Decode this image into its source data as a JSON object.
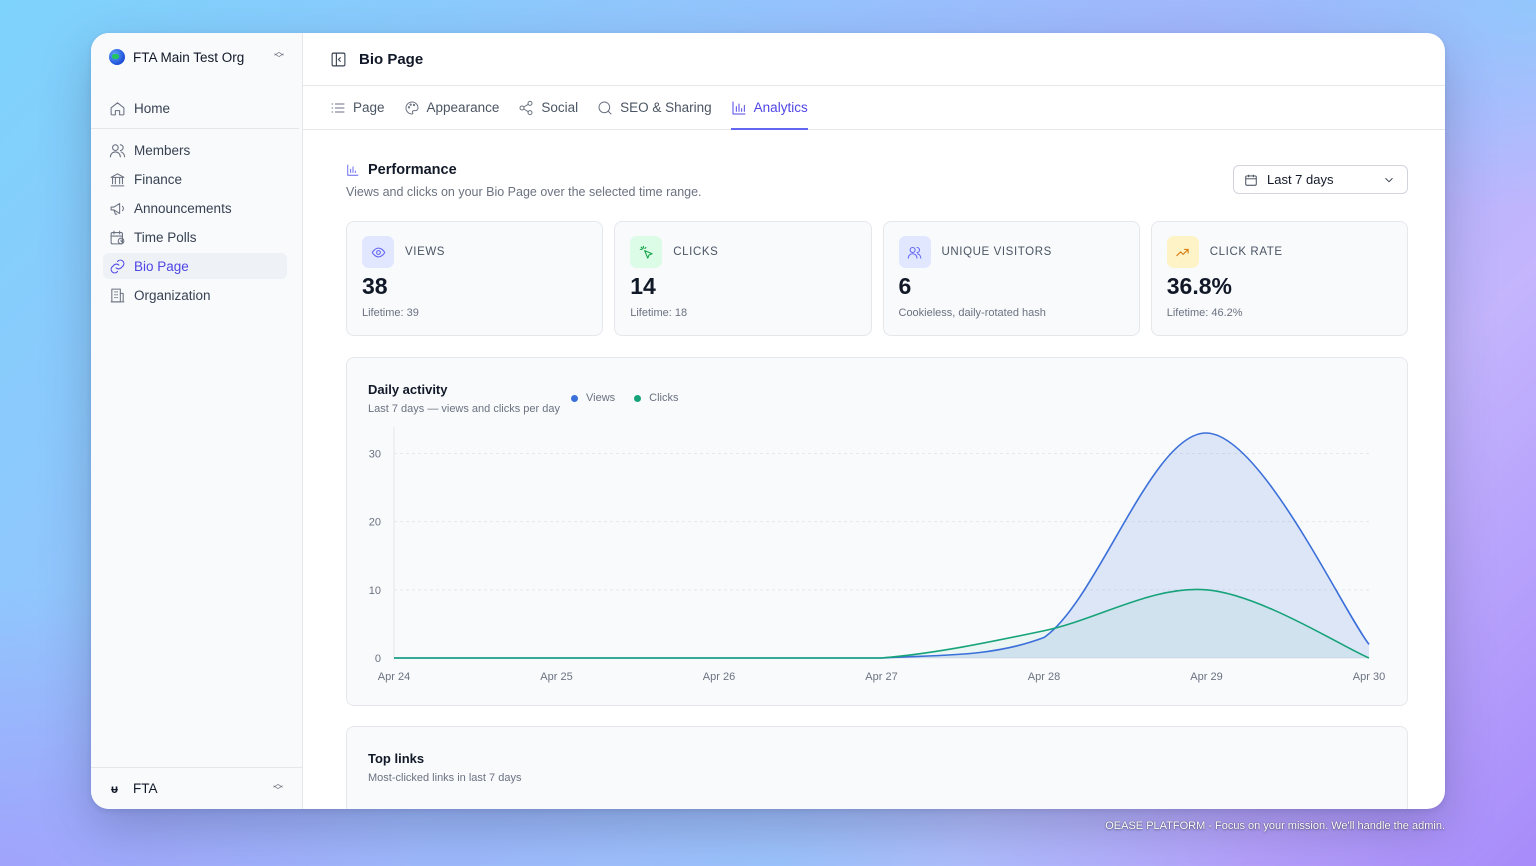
{
  "colors": {
    "accent": "#6366f1",
    "views": "#3b6fd9",
    "clicks": "#16a37a"
  },
  "sidebar": {
    "org_name": "FTA Main Test Org",
    "items": [
      {
        "label": "Home",
        "icon": "home-icon"
      },
      {
        "label": "Members",
        "icon": "users-icon"
      },
      {
        "label": "Finance",
        "icon": "bank-icon"
      },
      {
        "label": "Announcements",
        "icon": "megaphone-icon"
      },
      {
        "label": "Time Polls",
        "icon": "calendar-clock-icon"
      },
      {
        "label": "Bio Page",
        "icon": "link-icon",
        "active": true
      },
      {
        "label": "Organization",
        "icon": "building-icon"
      }
    ],
    "footer_name": "FTA"
  },
  "header": {
    "title": "Bio Page"
  },
  "tabs": [
    {
      "label": "Page",
      "icon": "list-icon"
    },
    {
      "label": "Appearance",
      "icon": "palette-icon"
    },
    {
      "label": "Social",
      "icon": "share-icon"
    },
    {
      "label": "SEO & Sharing",
      "icon": "search-icon"
    },
    {
      "label": "Analytics",
      "icon": "bar-chart-icon",
      "active": true
    }
  ],
  "performance": {
    "title": "Performance",
    "subtitle": "Views and clicks on your Bio Page over the selected time range.",
    "range": "Last 7 days"
  },
  "stats": [
    {
      "label": "VIEWS",
      "value": "38",
      "note": "Lifetime: 39",
      "icon": "eye-icon"
    },
    {
      "label": "CLICKS",
      "value": "14",
      "note": "Lifetime: 18",
      "icon": "cursor-click-icon"
    },
    {
      "label": "UNIQUE VISITORS",
      "value": "6",
      "note": "Cookieless, daily-rotated hash",
      "icon": "users-icon"
    },
    {
      "label": "CLICK RATE",
      "value": "36.8%",
      "note": "Lifetime: 46.2%",
      "icon": "trending-up-icon"
    }
  ],
  "daily": {
    "title": "Daily activity",
    "subtitle": "Last 7 days — views and clicks per day"
  },
  "chart_data": {
    "type": "area",
    "x": [
      "Apr 24",
      "Apr 25",
      "Apr 26",
      "Apr 27",
      "Apr 28",
      "Apr 29",
      "Apr 30"
    ],
    "series": [
      {
        "name": "Views",
        "values": [
          0,
          0,
          0,
          0,
          3,
          33,
          2
        ]
      },
      {
        "name": "Clicks",
        "values": [
          0,
          0,
          0,
          0,
          4,
          10,
          0
        ]
      }
    ],
    "yticks": [
      0,
      10,
      20,
      30
    ],
    "ylim": [
      0,
      33
    ],
    "grid": true,
    "legend": "top"
  },
  "top_links": {
    "title": "Top links",
    "subtitle": "Most-clicked links in last 7 days"
  },
  "caption": "OEASE PLATFORM - Focus on your mission. We'll handle the admin."
}
